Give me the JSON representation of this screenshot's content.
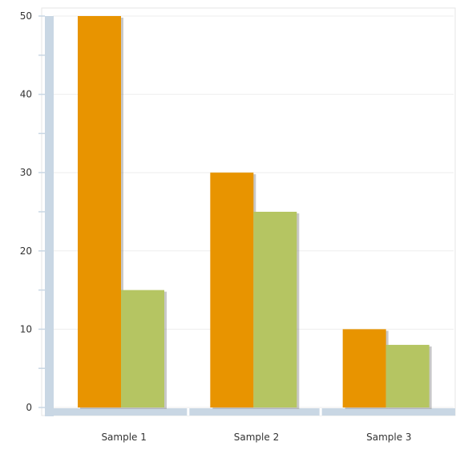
{
  "chart_data": {
    "type": "bar",
    "categories": [
      "Sample 1",
      "Sample 2",
      "Sample 3"
    ],
    "series": [
      {
        "values": [
          50,
          30,
          10
        ],
        "color": "#e89400"
      },
      {
        "values": [
          15,
          25,
          8
        ],
        "color": "#b5c562"
      }
    ],
    "ylim": [
      0,
      50
    ],
    "yticks": [
      "0",
      "10",
      "20",
      "30",
      "40",
      "50"
    ],
    "grid": true,
    "axis_color": "#c9d7e4",
    "legend": "none"
  }
}
